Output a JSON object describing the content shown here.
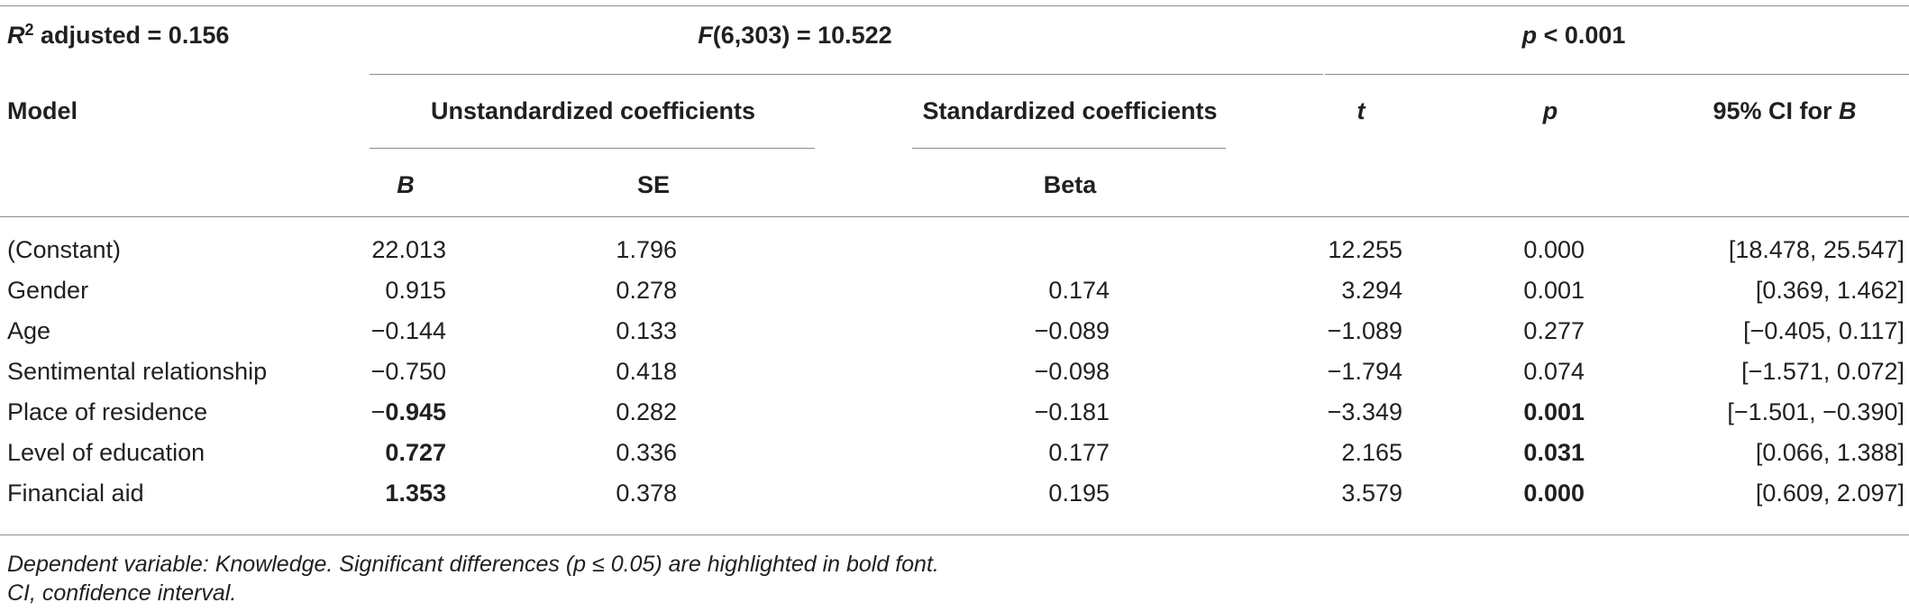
{
  "stats": {
    "r2_label_r": "R",
    "r2_label_sup": "2",
    "r2_label_rest": " adjusted = 0.156",
    "f_label_f": "F",
    "f_label_rest": "(6,303) = 10.522",
    "p_label_p": "p",
    "p_label_rest": " < 0.001"
  },
  "header": {
    "model": "Model",
    "unstd": "Unstandardized coefficients",
    "std": "Standardized coefficients",
    "t": "t",
    "p": "p",
    "ci_prefix": "95% CI for ",
    "ci_b": "B",
    "b": "B",
    "se": "SE",
    "beta": "Beta"
  },
  "rows": [
    {
      "label": "(Constant)",
      "b": "22.013",
      "se": "1.796",
      "beta": "",
      "t": "12.255",
      "p": "0.000",
      "ci": "[18.478, 25.547]"
    },
    {
      "label": "Gender",
      "b": "0.915",
      "se": "0.278",
      "beta": "0.174",
      "t": "3.294",
      "p": "0.001",
      "ci": "[0.369, 1.462]"
    },
    {
      "label": "Age",
      "b": "−0.144",
      "se": "0.133",
      "beta": "−0.089",
      "t": "−1.089",
      "p": "0.277",
      "ci": "[−0.405, 0.117]"
    },
    {
      "label": "Sentimental relationship",
      "b": "−0.750",
      "se": "0.418",
      "beta": "−0.098",
      "t": "−1.794",
      "p": "0.074",
      "ci": "[−1.571, 0.072]"
    },
    {
      "label": "Place of residence",
      "b_sign": "−",
      "b_num": "0.945",
      "se": "0.282",
      "beta": "−0.181",
      "t": "−3.349",
      "p": "0.001",
      "ci": "[−1.501, −0.390]"
    },
    {
      "label": "Level of education",
      "b": "0.727",
      "se": "0.336",
      "beta": "0.177",
      "t": "2.165",
      "p": "0.031",
      "ci": "[0.066, 1.388]"
    },
    {
      "label": "Financial aid",
      "b": "1.353",
      "se": "0.378",
      "beta": "0.195",
      "t": "3.579",
      "p": "0.000",
      "ci": "[0.609, 2.097]"
    }
  ],
  "footnote": {
    "line1_a": "Dependent variable: Knowledge. Significant differences (p ",
    "line1_le": "≤",
    "line1_b": " 0.05) are highlighted in bold font.",
    "line2": "CI, confidence interval."
  }
}
